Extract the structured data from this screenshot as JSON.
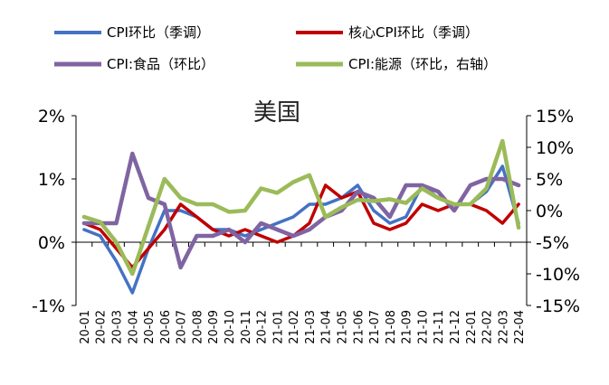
{
  "chart_data": {
    "type": "line",
    "title": "美国",
    "categories": [
      "20-01",
      "20-02",
      "20-03",
      "20-04",
      "20-05",
      "20-06",
      "20-07",
      "20-08",
      "20-09",
      "20-10",
      "20-11",
      "20-12",
      "21-01",
      "21-02",
      "21-03",
      "21-04",
      "21-05",
      "21-06",
      "21-07",
      "21-08",
      "21-09",
      "21-10",
      "21-11",
      "21-12",
      "22-01",
      "22-02",
      "22-03",
      "22-04"
    ],
    "y_left": {
      "ticks": [
        "-1%",
        "0%",
        "1%",
        "2%"
      ],
      "ylim": [
        -1,
        2
      ],
      "unit": "%"
    },
    "y_right": {
      "ticks": [
        "-15%",
        "-10%",
        "-5%",
        "0%",
        "5%",
        "10%",
        "15%"
      ],
      "ylim": [
        -15,
        15
      ],
      "unit": "%"
    },
    "grid": false,
    "legend_position": "top",
    "series": [
      {
        "name": "CPI环比（季调）",
        "axis": "left",
        "color": "#4472C4",
        "values": [
          0.2,
          0.1,
          -0.3,
          -0.8,
          -0.1,
          0.5,
          0.5,
          0.4,
          0.2,
          0.2,
          0.1,
          0.2,
          0.3,
          0.4,
          0.6,
          0.6,
          0.7,
          0.9,
          0.5,
          0.3,
          0.4,
          0.9,
          0.7,
          0.6,
          0.6,
          0.8,
          1.2,
          0.3
        ]
      },
      {
        "name": "核心CPI环比（季调）",
        "axis": "left",
        "color": "#C00000",
        "values": [
          0.3,
          0.2,
          -0.1,
          -0.4,
          -0.1,
          0.2,
          0.6,
          0.4,
          0.2,
          0.1,
          0.2,
          0.1,
          0.0,
          0.1,
          0.3,
          0.9,
          0.7,
          0.8,
          0.3,
          0.2,
          0.3,
          0.6,
          0.5,
          0.6,
          0.6,
          0.5,
          0.3,
          0.6
        ]
      },
      {
        "name": "CPI:食品（环比）",
        "axis": "left",
        "color": "#8064A2",
        "values": [
          0.3,
          0.3,
          0.3,
          1.4,
          0.7,
          0.6,
          -0.4,
          0.1,
          0.1,
          0.2,
          0.0,
          0.3,
          0.2,
          0.1,
          0.2,
          0.4,
          0.5,
          0.8,
          0.7,
          0.4,
          0.9,
          0.9,
          0.8,
          0.5,
          0.9,
          1.0,
          1.0,
          0.9
        ]
      },
      {
        "name": "CPI:能源（环比，右轴）",
        "axis": "right",
        "color": "#9BBB59",
        "values": [
          -1.0,
          -1.8,
          -5.0,
          -10.0,
          -2.5,
          5.0,
          2.0,
          1.0,
          1.0,
          -0.2,
          0.0,
          3.5,
          2.8,
          4.5,
          5.6,
          -1.0,
          0.5,
          1.7,
          1.5,
          1.8,
          1.2,
          3.5,
          2.0,
          1.0,
          1.0,
          3.5,
          11.0,
          -2.7
        ]
      }
    ]
  }
}
